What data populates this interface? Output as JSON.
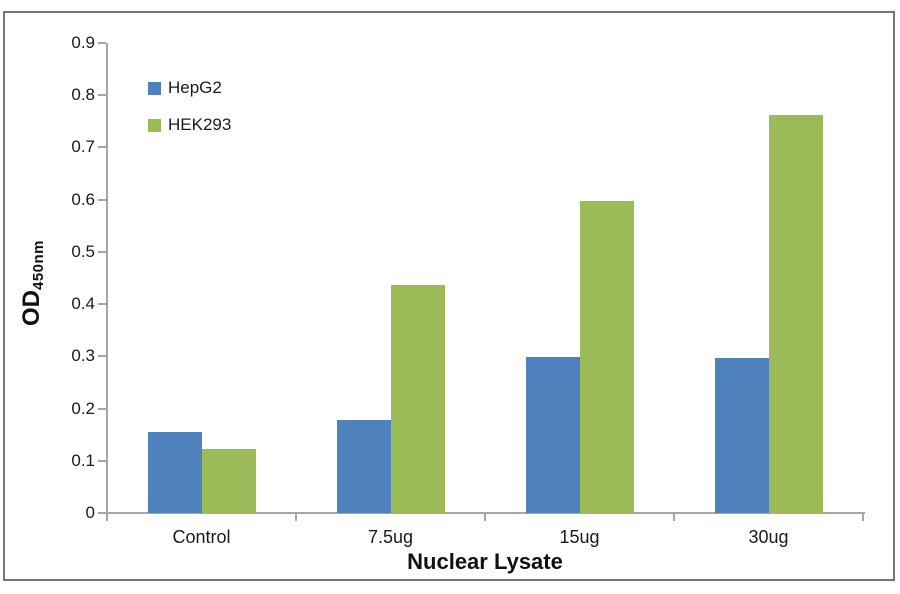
{
  "figure": {
    "background_color": "#ffffff",
    "frame_color": "#767676"
  },
  "chart_data": {
    "type": "bar",
    "title": "",
    "categories": [
      "Control",
      "7.5ug",
      "15ug",
      "30ug"
    ],
    "series": [
      {
        "name": "HepG2",
        "color": "#4f81bd",
        "values": [
          0.155,
          0.178,
          0.298,
          0.296
        ]
      },
      {
        "name": "HEK293",
        "color": "#9bbb59",
        "values": [
          0.122,
          0.437,
          0.598,
          0.762
        ]
      }
    ],
    "xlabel": "Nuclear Lysate",
    "ylabel_main": "OD",
    "ylabel_sub": "450nm",
    "ylim": [
      0,
      0.9
    ],
    "ytick_step": 0.1,
    "ytick_labels": [
      "0",
      "0.1",
      "0.2",
      "0.3",
      "0.4",
      "0.5",
      "0.6",
      "0.7",
      "0.8",
      "0.9"
    ],
    "grid": false,
    "legend_position": "upper-left",
    "axis_color": "#a6a6a6"
  }
}
